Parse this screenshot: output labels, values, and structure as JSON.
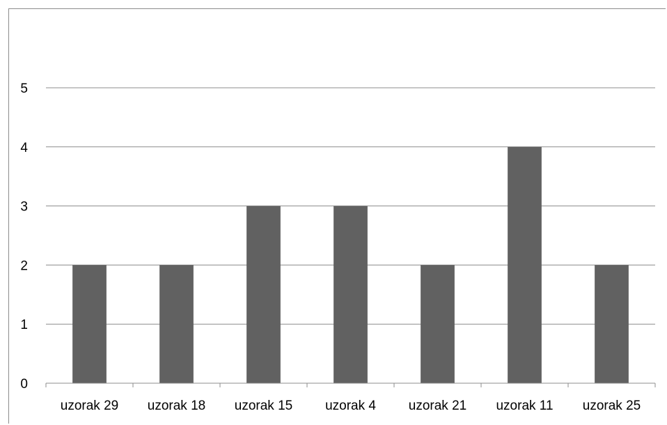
{
  "chart_data": {
    "type": "bar",
    "title": "",
    "xlabel": "",
    "ylabel": "",
    "categories": [
      "uzorak 29",
      "uzorak 18",
      "uzorak 15",
      "uzorak 4",
      "uzorak 21",
      "uzorak 11",
      "uzorak 25"
    ],
    "values": [
      2,
      2,
      3,
      3,
      2,
      4,
      2
    ],
    "ylim": [
      0,
      5
    ],
    "yticks": [
      "0",
      "1",
      "2",
      "3",
      "4",
      "5"
    ],
    "grid": true,
    "legend": "none",
    "bar_color": "#616161"
  }
}
